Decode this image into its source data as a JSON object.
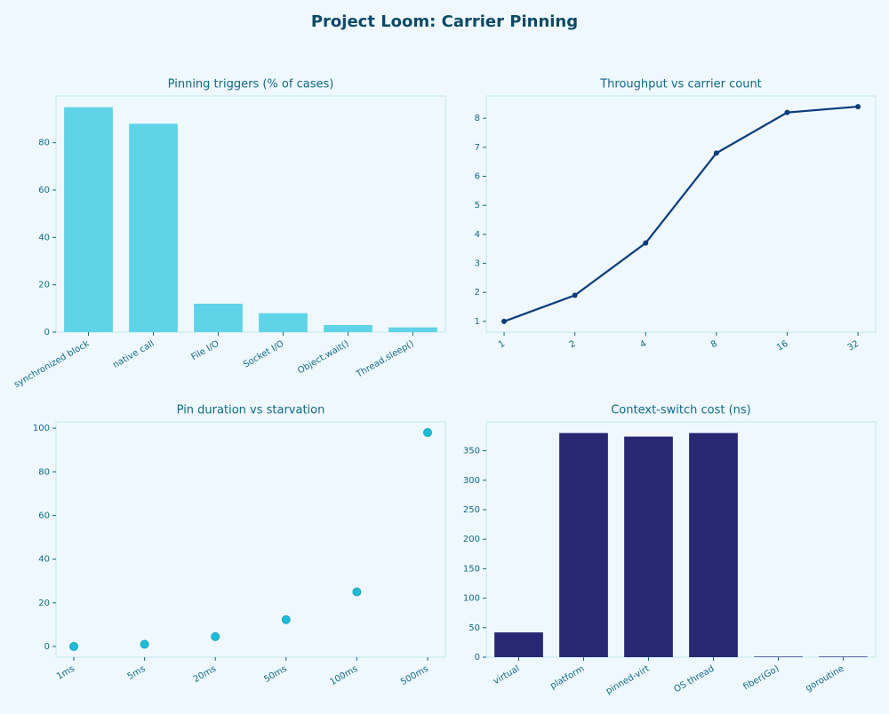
{
  "title": "Project Loom: Carrier Pinning",
  "chart_data": [
    {
      "type": "bar",
      "title": "Pinning triggers (% of cases)",
      "categories": [
        "synchronized block",
        "native call",
        "File I/O",
        "Socket I/O",
        "Object.wait()",
        "Thread.sleep()"
      ],
      "values": [
        95,
        88,
        12,
        8,
        3,
        2
      ],
      "color": "#5fd3e8",
      "ylim": [
        0,
        99.75
      ],
      "yticks": [
        0,
        20,
        40,
        60,
        80
      ]
    },
    {
      "type": "line",
      "title": "Throughput vs carrier count",
      "x": [
        1,
        2,
        4,
        8,
        16,
        32
      ],
      "values": [
        1.0,
        1.9,
        3.7,
        6.8,
        8.2,
        8.4
      ],
      "color": "#0b3d7e",
      "xscale": "log",
      "xlim": [
        0.84,
        38.05
      ],
      "xticks": [
        1,
        2,
        4,
        8,
        16,
        32
      ],
      "ylim": [
        0.63,
        8.77
      ],
      "yticks": [
        1,
        2,
        3,
        4,
        5,
        6,
        7,
        8
      ]
    },
    {
      "type": "scatter",
      "title": "Pin duration vs starvation",
      "categories": [
        "1ms",
        "5ms",
        "20ms",
        "50ms",
        "100ms",
        "500ms"
      ],
      "values": [
        0,
        1,
        4.5,
        12.3,
        25,
        98
      ],
      "color": "#1fbcd6",
      "ylim": [
        -4.9,
        102.9
      ],
      "yticks": [
        0,
        20,
        40,
        60,
        80,
        100
      ]
    },
    {
      "type": "bar",
      "title": "Context-switch cost (ns)",
      "categories": [
        "virtual",
        "platform",
        "pinned-virt",
        "OS thread",
        "fiber(Go)",
        "goroutine"
      ],
      "values": [
        42,
        380,
        374,
        380,
        1,
        1
      ],
      "color": "#262873",
      "ylim": [
        0,
        399
      ],
      "yticks": [
        0,
        50,
        100,
        150,
        200,
        250,
        300,
        350
      ]
    }
  ]
}
